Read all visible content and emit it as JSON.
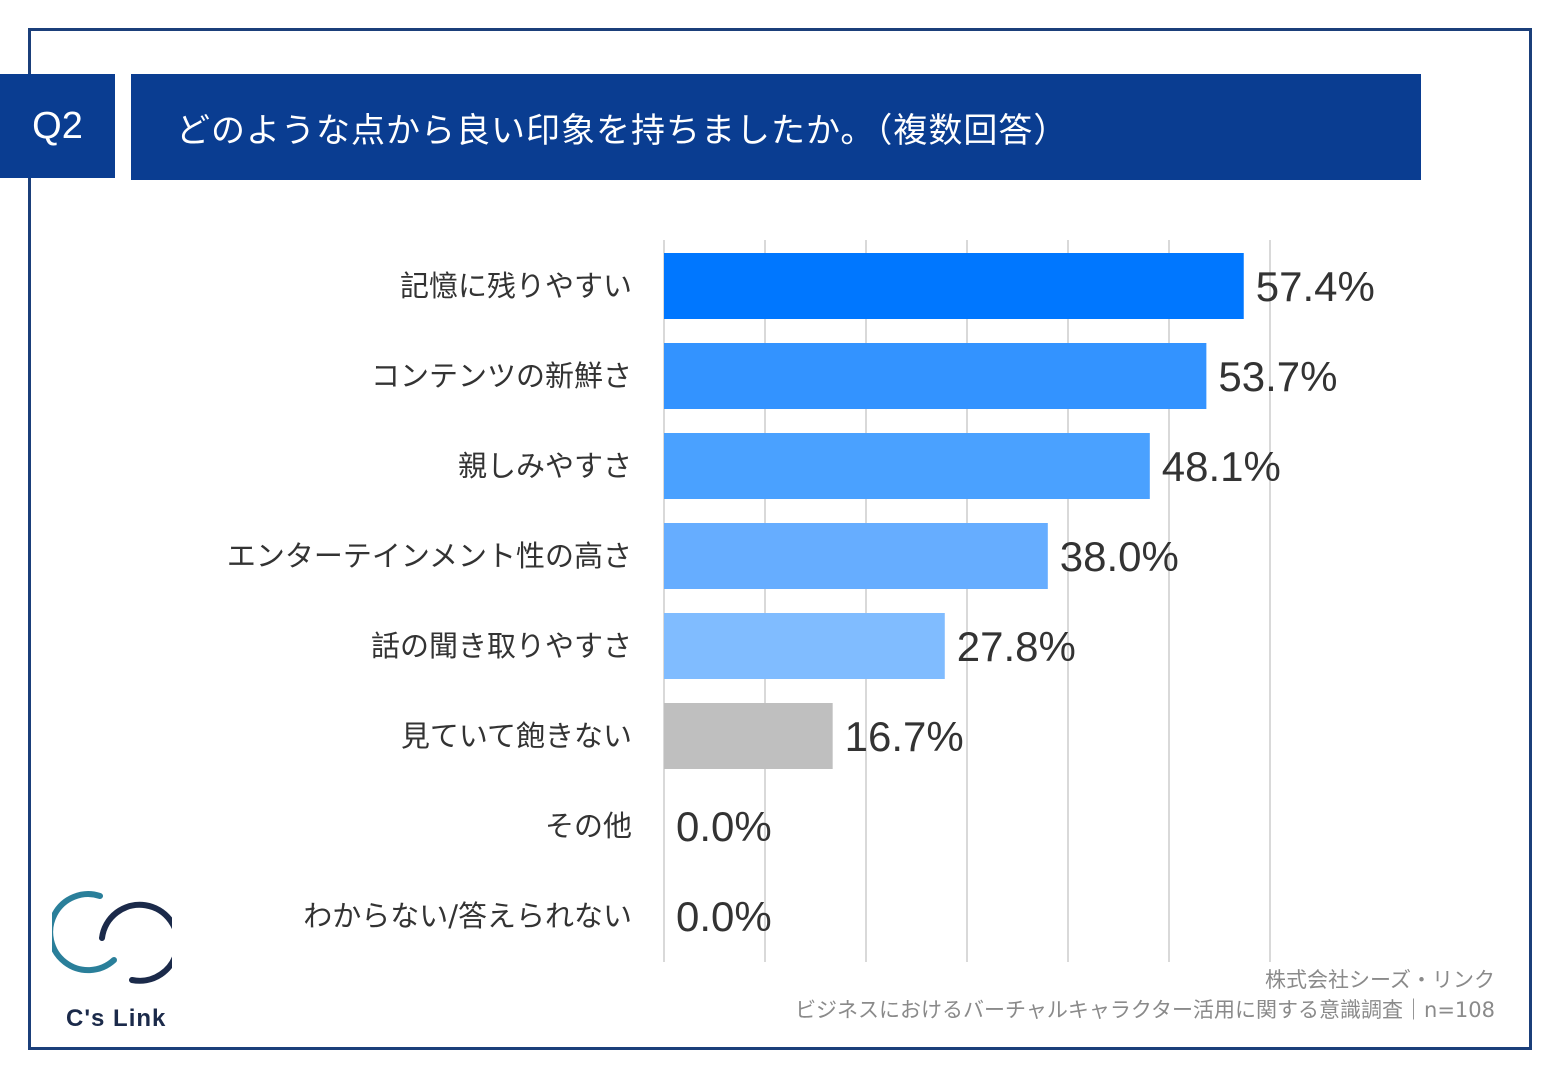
{
  "header": {
    "q_label": "Q2",
    "title": "どのような点から良い印象を持ちましたか。（複数回答）"
  },
  "colors": {
    "navy": "#0a3d91",
    "bars": [
      "#0077ff",
      "#3393ff",
      "#4aa1ff",
      "#66adff",
      "#80bcff",
      "#bfbfbf",
      "#bfbfbf",
      "#bfbfbf"
    ],
    "grid": "#d9d9d9"
  },
  "chart_data": {
    "type": "bar",
    "orientation": "horizontal",
    "categories": [
      "記憶に残りやすい",
      "コンテンツの新鮮さ",
      "親しみやすさ",
      "エンターテインメント性の高さ",
      "話の聞き取りやすさ",
      "見ていて飽きない",
      "その他",
      "わからない/答えられない"
    ],
    "values": [
      57.4,
      53.7,
      48.1,
      38.0,
      27.8,
      16.7,
      0.0,
      0.0
    ],
    "value_labels": [
      "57.4%",
      "53.7%",
      "48.1%",
      "38.0%",
      "27.8%",
      "16.7%",
      "0.0%",
      "0.0%"
    ],
    "xlim": [
      0,
      60
    ],
    "grid": true,
    "gridline_step": 10,
    "title": "どのような点から良い印象を持ちましたか。（複数回答）"
  },
  "logo": {
    "text": "C's Link"
  },
  "footer": {
    "company": "株式会社シーズ・リンク",
    "survey": "ビジネスにおけるバーチャルキャラクター活用に関する意識調査｜n=108"
  }
}
